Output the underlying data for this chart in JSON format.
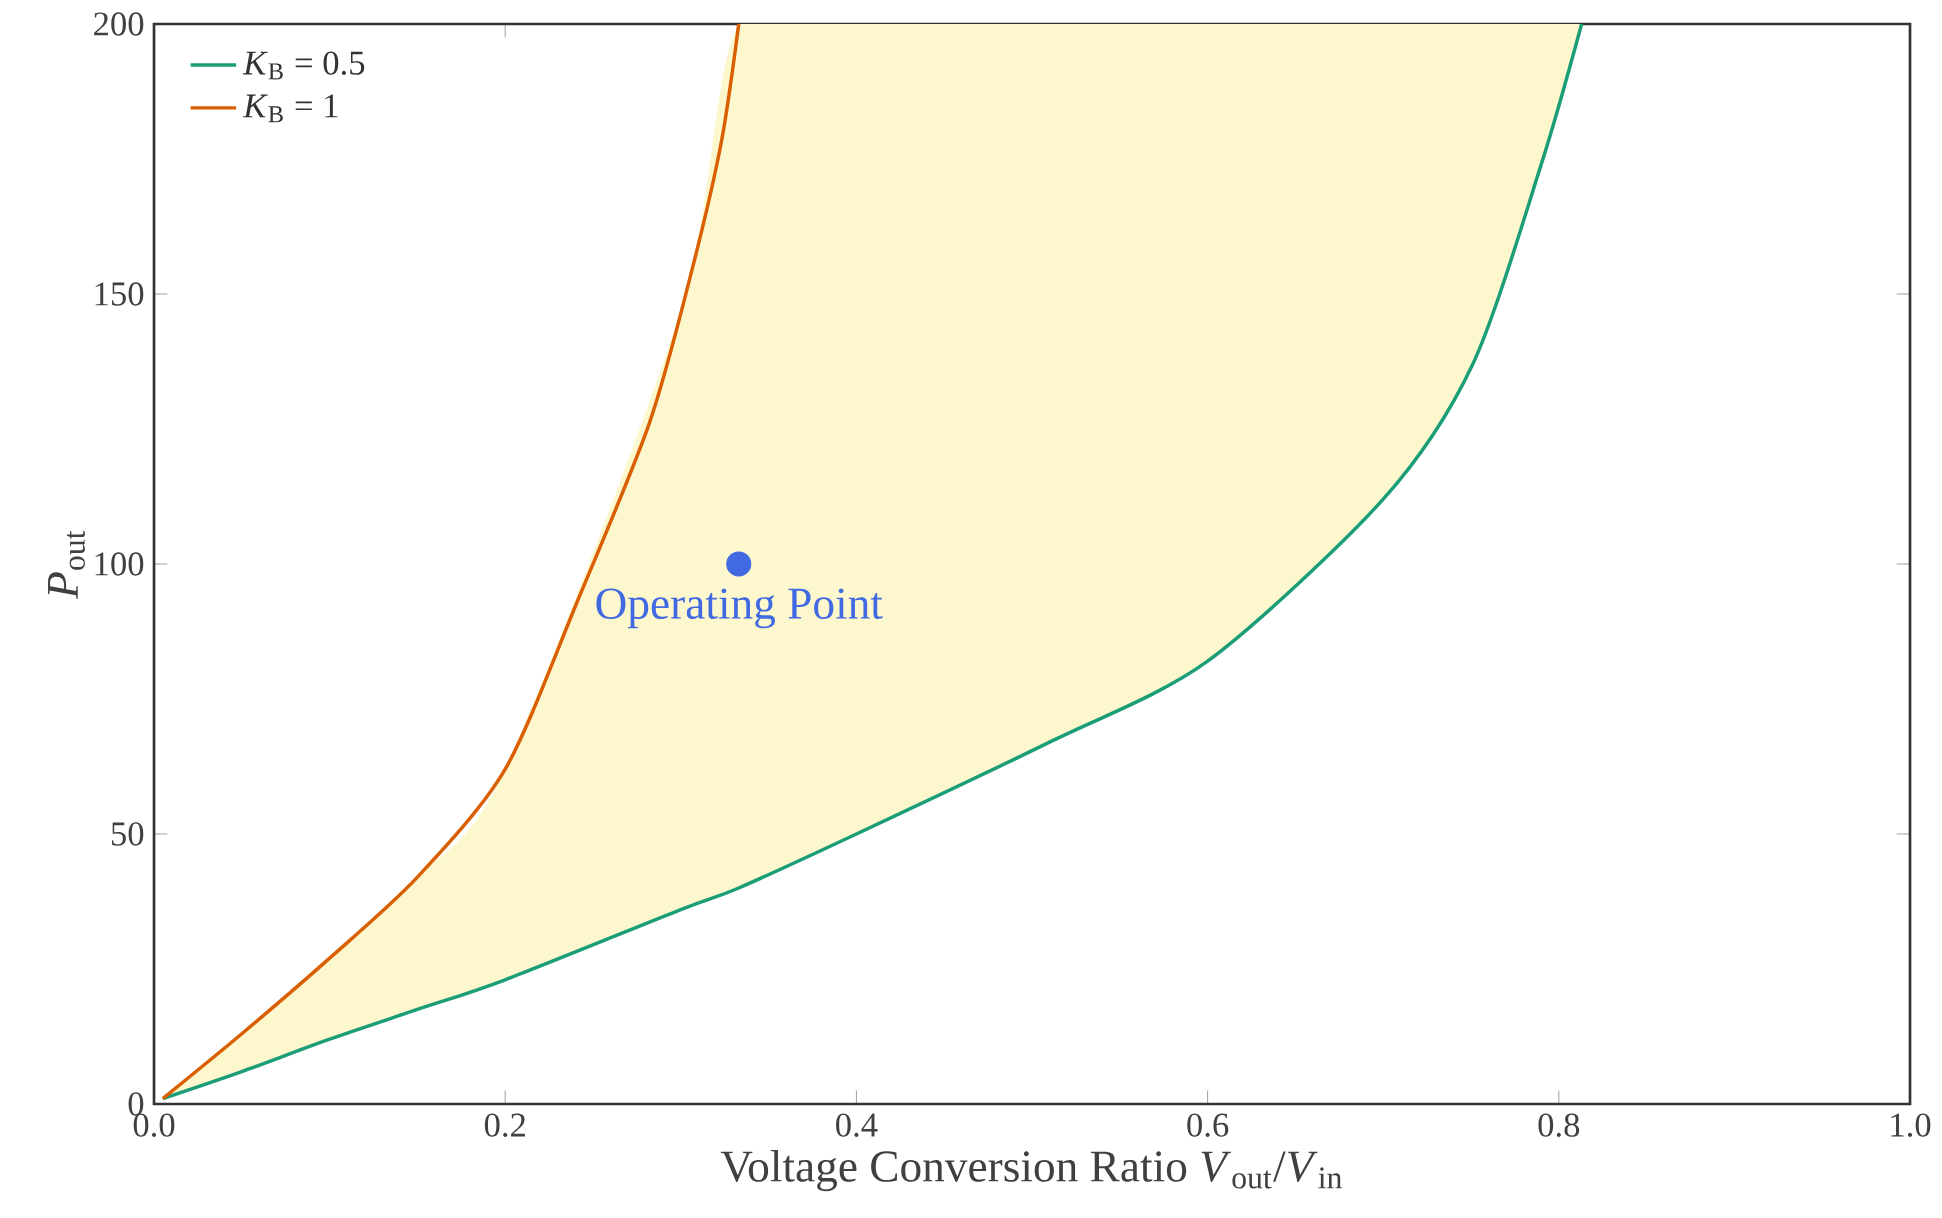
{
  "chart_data": {
    "type": "line",
    "xlabel": "Voltage Conversion Ratio *V*$_{out}$/*V*$_{in}$",
    "ylabel": "*P*$_{out}$",
    "xlim": [
      0,
      1
    ],
    "ylim": [
      0,
      200
    ],
    "xticks": [
      {
        "value": 0,
        "label": "0.0"
      },
      0.2,
      0.4,
      0.6,
      0.8,
      {
        "value": 1,
        "label": "1.0"
      }
    ],
    "yticks": [
      0,
      50,
      100,
      150,
      200
    ],
    "grid": false,
    "legend": "top left",
    "series": [
      {
        "name": "*K*$_{B}$ = 0.5",
        "color": "#1b9e77",
        "x": [
          0.005,
          0.05,
          0.1,
          0.15,
          0.2,
          0.3,
          0.333,
          0.4,
          0.51,
          0.6,
          0.7,
          0.751,
          0.79,
          0.813
        ],
        "values": [
          1,
          6,
          12,
          17.5,
          23,
          36,
          40,
          50,
          67,
          82,
          112,
          137,
          174,
          200
        ],
        "lower": [
          1,
          6,
          12,
          17.5,
          23,
          36,
          40,
          50,
          67,
          82,
          112,
          137,
          174,
          200
        ],
        "upper": [
          1,
          13,
          27,
          42,
          62,
          147,
          200,
          200,
          200,
          200,
          200,
          200,
          200,
          200
        ]
      },
      {
        "name": "*K*$_{B}$ = 1",
        "color": "#d95f02",
        "x": [
          0.005,
          0.05,
          0.1,
          0.15,
          0.2,
          0.241,
          0.282,
          0.306,
          0.323,
          0.333
        ],
        "values": [
          1,
          13,
          27,
          42,
          62,
          93,
          126,
          154,
          178,
          200
        ]
      },
      {
        "type": "scatter",
        "color": "#4169e1",
        "x": [
          0.333
        ],
        "values": [
          100
        ]
      }
    ],
    "annotations": [
      {
        "text": "Operating Point",
        "x": 0.333,
        "y": 100
      }
    ]
  }
}
